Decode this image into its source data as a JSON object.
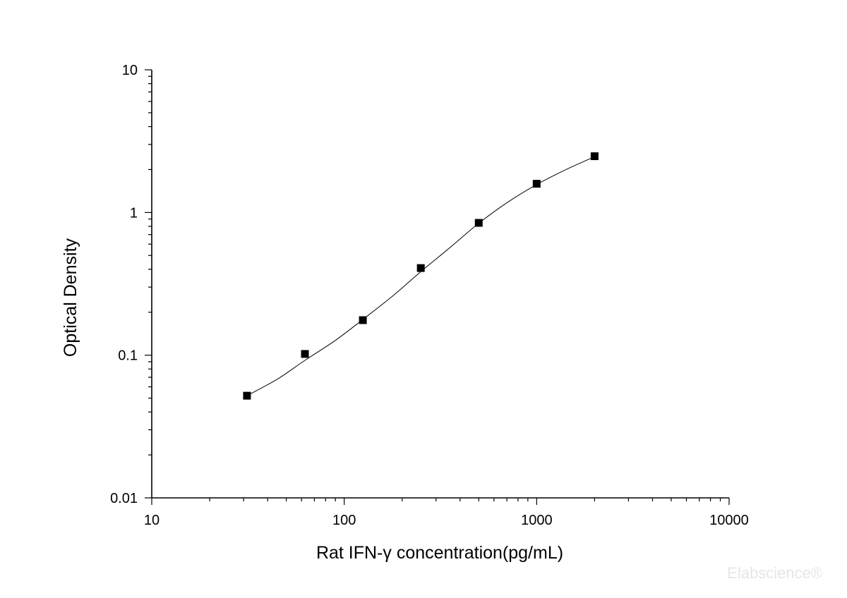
{
  "chart_data": {
    "type": "scatter",
    "title": "",
    "xlabel": "Rat IFN-γ   concentration(pg/mL)",
    "ylabel": "Optical Density",
    "x_scale": "log",
    "y_scale": "log",
    "xlim": [
      10,
      10000
    ],
    "ylim": [
      0.01,
      10
    ],
    "x_tick_labels": [
      "10",
      "100",
      "1000",
      "10000"
    ],
    "y_tick_labels": [
      "0.01",
      "0.1",
      "1",
      "10"
    ],
    "grid": false,
    "legend": "none",
    "series": [
      {
        "marker": "square",
        "color": "#000000",
        "points": [
          {
            "x": 31.25,
            "y": 0.052
          },
          {
            "x": 62.5,
            "y": 0.102
          },
          {
            "x": 125,
            "y": 0.176
          },
          {
            "x": 250,
            "y": 0.408
          },
          {
            "x": 500,
            "y": 0.846
          },
          {
            "x": 1000,
            "y": 1.59
          },
          {
            "x": 2000,
            "y": 2.48
          }
        ]
      }
    ],
    "fit_curve": {
      "color": "#000000",
      "points": [
        {
          "x": 31.25,
          "y": 0.052
        },
        {
          "x": 45,
          "y": 0.068
        },
        {
          "x": 62.5,
          "y": 0.092
        },
        {
          "x": 90,
          "y": 0.127
        },
        {
          "x": 125,
          "y": 0.178
        },
        {
          "x": 180,
          "y": 0.262
        },
        {
          "x": 250,
          "y": 0.385
        },
        {
          "x": 350,
          "y": 0.56
        },
        {
          "x": 500,
          "y": 0.84
        },
        {
          "x": 700,
          "y": 1.17
        },
        {
          "x": 1000,
          "y": 1.57
        },
        {
          "x": 1400,
          "y": 1.98
        },
        {
          "x": 2000,
          "y": 2.46
        }
      ]
    }
  },
  "watermark": "Elabscience®"
}
